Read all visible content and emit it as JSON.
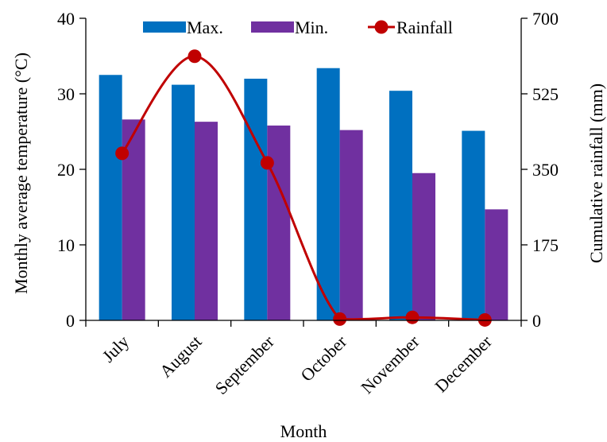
{
  "chart_data": {
    "type": "bar",
    "title": "",
    "categories": [
      "July",
      "August",
      "September",
      "October",
      "November",
      "December"
    ],
    "series": [
      {
        "name": "Max.",
        "type": "bar",
        "axis": "left",
        "color": "#0070C0",
        "values": [
          32.5,
          31.2,
          32.0,
          33.4,
          30.4,
          25.1
        ]
      },
      {
        "name": "Min.",
        "type": "bar",
        "axis": "left",
        "color": "#7030A0",
        "values": [
          26.6,
          26.3,
          25.8,
          25.2,
          19.5,
          14.7
        ]
      },
      {
        "name": "Rainfall",
        "type": "line",
        "axis": "right",
        "color": "#C00000",
        "values": [
          387,
          612,
          365,
          3,
          7,
          1
        ]
      }
    ],
    "xlabel": "Month",
    "ylabel": "Monthly average temperature (°C)",
    "y2label": "Cumulative rainfall (mm)",
    "ylim": [
      0,
      40
    ],
    "y2lim": [
      0,
      700
    ],
    "yticks": [
      0,
      10,
      20,
      30,
      40
    ],
    "y2ticks": [
      0,
      175,
      350,
      525,
      700
    ],
    "legend_position": "top",
    "grid": false
  }
}
